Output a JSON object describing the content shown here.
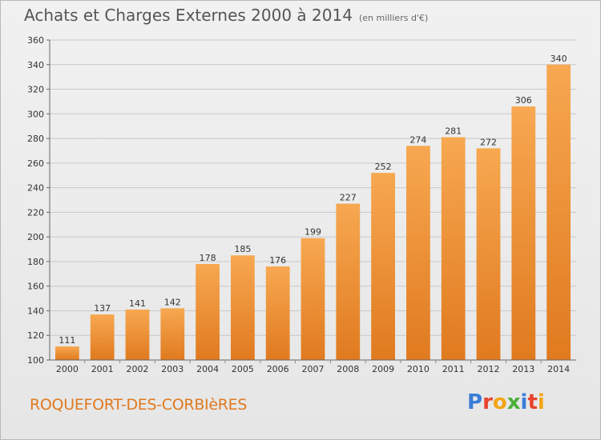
{
  "header": {
    "title": "Achats et Charges Externes 2000 à 2014",
    "unit": "(en milliers d'€)"
  },
  "footer": {
    "commune": "ROQUEFORT-DES-CORBIèRES",
    "logo": "Proxiti"
  },
  "colors": {
    "bar_top": "#f7a851",
    "bar_bottom": "#e07a1f",
    "grid": "#c8c8c8",
    "commune_text": "#e07a1f"
  },
  "chart_data": {
    "type": "bar",
    "title": "Achats et Charges Externes 2000 à 2014",
    "subtitle": "(en milliers d'€)",
    "categories": [
      "2000",
      "2001",
      "2002",
      "2003",
      "2004",
      "2005",
      "2006",
      "2007",
      "2008",
      "2009",
      "2010",
      "2011",
      "2012",
      "2013",
      "2014"
    ],
    "values": [
      111,
      137,
      141,
      142,
      178,
      185,
      176,
      199,
      227,
      252,
      274,
      281,
      272,
      306,
      340
    ],
    "ylim": [
      100,
      360
    ],
    "yticks": [
      100,
      120,
      140,
      160,
      180,
      200,
      220,
      240,
      260,
      280,
      300,
      320,
      340,
      360
    ],
    "grid": true,
    "data_labels": true
  }
}
